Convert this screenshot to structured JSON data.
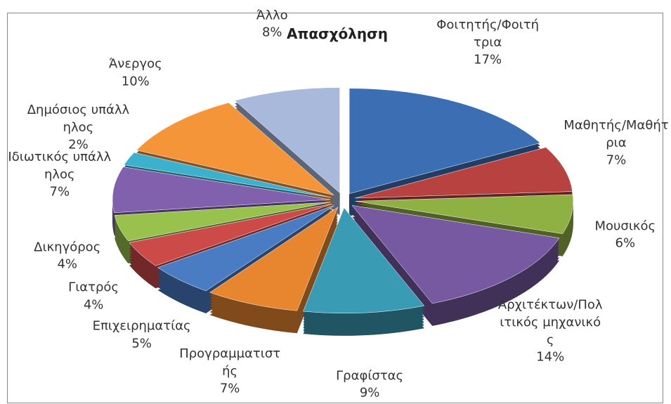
{
  "chart_data": {
    "type": "pie",
    "title": "Απασχόληση",
    "categories": [
      "Φοιτητής/Φοιτήτρια",
      "Μαθητής/Μαθήτρια",
      "Μουσικός",
      "Αρχιτέκτων/Πολιτικός μηχανικός",
      "Γραφίστας",
      "Προγραμματιστής",
      "Επιχειρηματίας",
      "Γιατρός",
      "Δικηγόρος",
      "Ιδιωτικός υπάλληλος",
      "Δημόσιος υπάλληλος",
      "Άνεργος",
      "Άλλο"
    ],
    "values": [
      17,
      7,
      6,
      14,
      9,
      7,
      5,
      4,
      4,
      7,
      2,
      10,
      8
    ],
    "value_labels": [
      "17%",
      "7%",
      "6%",
      "14%",
      "9%",
      "7%",
      "5%",
      "4%",
      "4%",
      "7%",
      "2%",
      "10%",
      "8%"
    ],
    "colors": [
      "#3c6eb4",
      "#b8423f",
      "#8fb043",
      "#7659a0",
      "#3a9bb4",
      "#e8862f",
      "#4a7cc4",
      "#cc4b48",
      "#98c14e",
      "#8161ad",
      "#3cb0cc",
      "#f5953a",
      "#a9b9dc"
    ]
  }
}
